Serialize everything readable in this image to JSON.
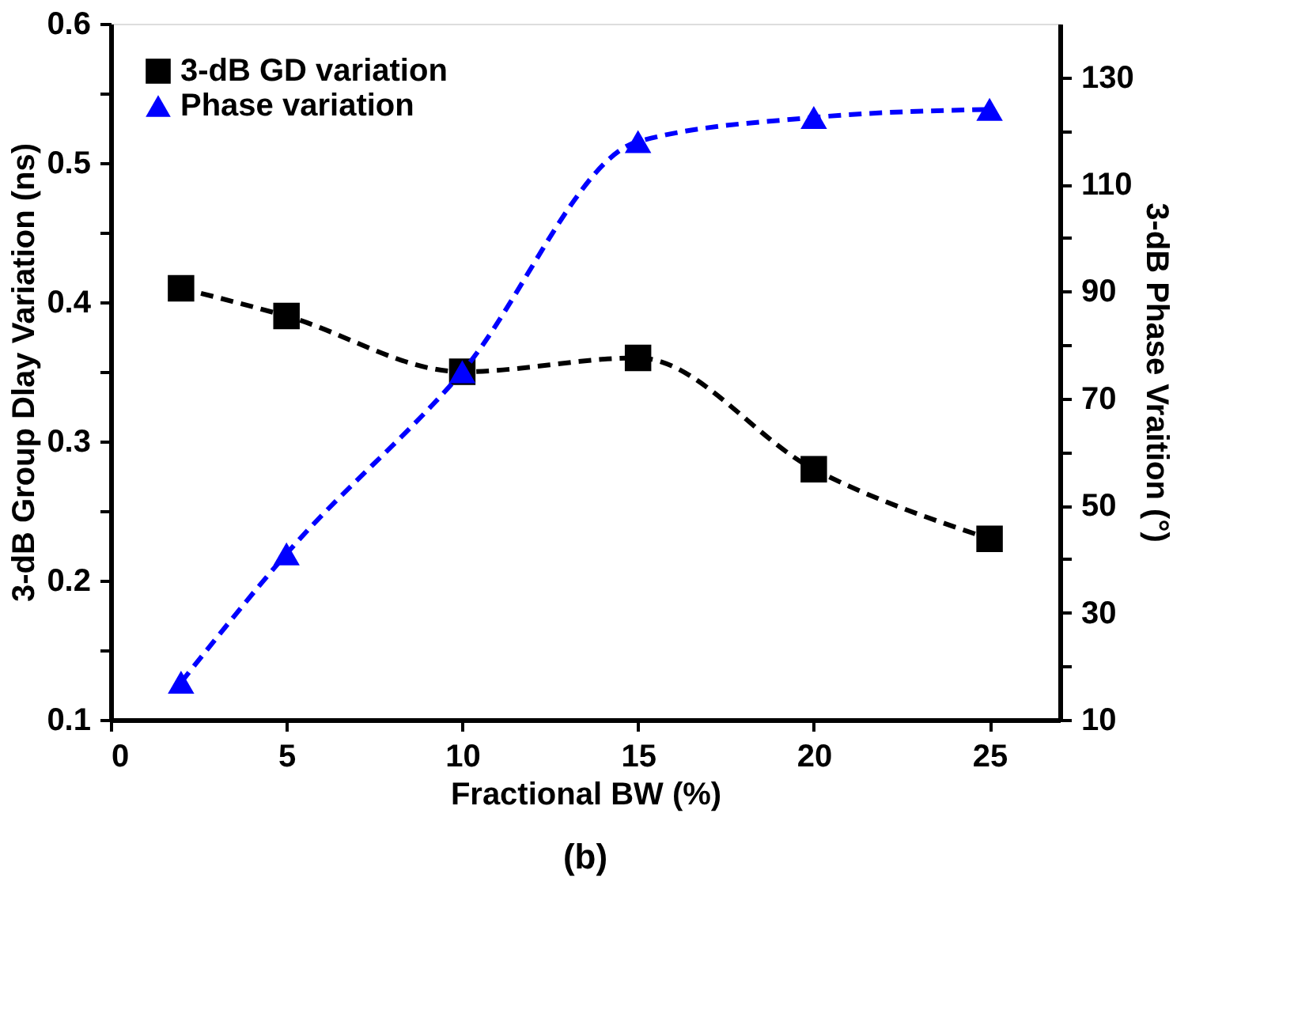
{
  "chart_data": {
    "type": "line",
    "xlabel": "Fractional BW (%)",
    "ylabel": "3-dB Group Dlay Variation  (ns)",
    "y2label": "3-dB Phase Vraition (°)",
    "annotations": [
      "(b)"
    ],
    "x": [
      2,
      5,
      10,
      15,
      20,
      25
    ],
    "series": [
      {
        "name": "3-dB GD variation",
        "color": "#000000",
        "marker": "square",
        "values": [
          0.41,
          0.39,
          0.35,
          0.36,
          0.28,
          0.23
        ]
      },
      {
        "name": "Phase variation",
        "color": "#0000ff",
        "marker": "triangle",
        "axis": "y2",
        "values": [
          17,
          41,
          75,
          118,
          122.5,
          124
        ]
      }
    ],
    "xlim": [
      0,
      27
    ],
    "xticks": [
      0,
      5,
      10,
      15,
      20,
      25
    ],
    "ylim": [
      0.1,
      0.6
    ],
    "yticks": [
      0.1,
      {
        "value": 0.15,
        "label": null
      },
      0.2,
      {
        "value": 0.25,
        "label": null
      },
      0.3,
      {
        "value": 0.35,
        "label": null
      },
      0.4,
      {
        "value": 0.45,
        "label": null
      },
      0.5,
      {
        "value": 0.55,
        "label": null
      },
      0.6
    ],
    "y2lim": [
      10,
      140
    ],
    "y2ticks": [
      10,
      {
        "value": 20,
        "label": null
      },
      30,
      {
        "value": 40,
        "label": null
      },
      50,
      {
        "value": 60,
        "label": null
      },
      70,
      {
        "value": 80,
        "label": null
      },
      90,
      {
        "value": 100,
        "label": null
      },
      110,
      {
        "value": 120,
        "label": null
      },
      130
    ],
    "line_style": "dashed",
    "grid": false,
    "legend": "top left"
  }
}
